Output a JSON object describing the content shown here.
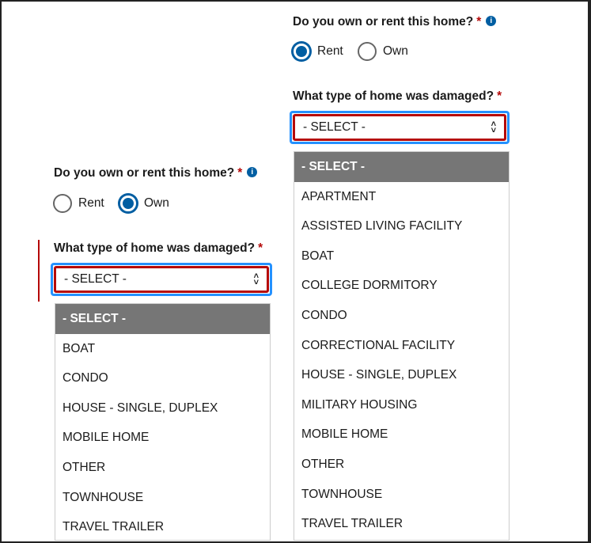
{
  "left": {
    "question1": "Do you own or rent this home?",
    "required_mark": "*",
    "info_icon": "i",
    "radio_rent": "Rent",
    "radio_own": "Own",
    "selected": "Own",
    "question2": "What type of home was damaged?",
    "select_value": "- SELECT -",
    "options": [
      "- SELECT -",
      "BOAT",
      "CONDO",
      "HOUSE - SINGLE, DUPLEX",
      "MOBILE HOME",
      "OTHER",
      "TOWNHOUSE",
      "TRAVEL TRAILER"
    ]
  },
  "right": {
    "question1": "Do you own or rent this home?",
    "required_mark": "*",
    "info_icon": "i",
    "radio_rent": "Rent",
    "radio_own": "Own",
    "selected": "Rent",
    "question2": "What type of home was damaged?",
    "select_value": "- SELECT -",
    "options": [
      "- SELECT -",
      "APARTMENT",
      "ASSISTED LIVING FACILITY",
      "BOAT",
      "COLLEGE DORMITORY",
      "CONDO",
      "CORRECTIONAL FACILITY",
      "HOUSE - SINGLE, DUPLEX",
      "MILITARY HOUSING",
      "MOBILE HOME",
      "OTHER",
      "TOWNHOUSE",
      "TRAVEL TRAILER"
    ]
  },
  "colors": {
    "accent": "#005ea2",
    "error": "#b50909",
    "focus": "#2491ff",
    "highlight": "#767676"
  }
}
